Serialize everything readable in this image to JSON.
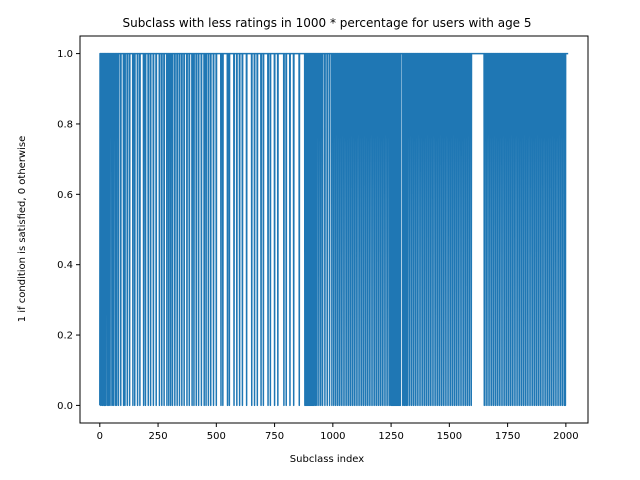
{
  "chart_data": {
    "type": "line",
    "title": "Subclass with less ratings in 1000 * percentage for users with age 5",
    "xlabel": "Subclass index",
    "ylabel": "1 if condition is satisfied, 0 otherwise",
    "xlim": [
      -85,
      2095
    ],
    "ylim": [
      -0.05,
      1.05
    ],
    "xticks": [
      0,
      250,
      500,
      750,
      1000,
      1250,
      1500,
      1750,
      2000
    ],
    "yticks": [
      0.0,
      0.2,
      0.4,
      0.6,
      0.8,
      1.0
    ],
    "xtick_labels": [
      "0",
      "250",
      "500",
      "750",
      "1000",
      "1250",
      "1500",
      "1750",
      "2000"
    ],
    "ytick_labels": [
      "0.0",
      "0.2",
      "0.4",
      "0.6",
      "0.8",
      "1.0"
    ],
    "grid": false,
    "series": [
      {
        "color": "#1f77b4",
        "x_range": [
          0,
          2010
        ],
        "zero_indices": [
          0,
          4,
          10,
          14,
          20,
          22,
          25,
          32,
          38,
          44,
          52,
          58,
          66,
          72,
          80,
          90,
          102,
          108,
          118,
          128,
          142,
          150,
          162,
          172,
          188,
          196,
          208,
          218,
          230,
          242,
          256,
          266,
          276,
          288,
          296,
          304,
          312,
          322,
          332,
          342,
          352,
          362,
          374,
          384,
          396,
          404,
          414,
          424,
          436,
          448,
          456,
          466,
          476,
          488,
          500,
          520,
          528,
          548,
          556,
          576,
          588,
          600,
          612,
          630,
          652,
          664,
          676,
          692,
          702,
          722,
          732,
          750,
          764,
          790,
          800,
          816,
          832,
          856,
          880,
          884,
          888,
          892,
          896,
          900,
          904,
          908,
          912,
          916,
          920,
          926,
          932,
          940,
          948,
          956,
          966,
          976,
          986,
          996,
          1004,
          1012,
          1020,
          1028,
          1036,
          1044,
          1052,
          1060,
          1068,
          1076,
          1084,
          1092,
          1100,
          1108,
          1116,
          1124,
          1132,
          1140,
          1148,
          1156,
          1164,
          1172,
          1180,
          1188,
          1196,
          1204,
          1212,
          1220,
          1228,
          1236,
          1244,
          1250,
          1254,
          1258,
          1262,
          1266,
          1270,
          1274,
          1278,
          1282,
          1286,
          1290,
          1300,
          1306,
          1310,
          1316,
          1322,
          1330,
          1338,
          1346,
          1354,
          1362,
          1370,
          1378,
          1386,
          1394,
          1402,
          1410,
          1418,
          1426,
          1434,
          1442,
          1450,
          1458,
          1466,
          1474,
          1482,
          1490,
          1498,
          1506,
          1514,
          1522,
          1530,
          1538,
          1546,
          1554,
          1562,
          1570,
          1578,
          1586,
          1594,
          1650,
          1658,
          1666,
          1674,
          1682,
          1690,
          1698,
          1706,
          1714,
          1722,
          1730,
          1738,
          1746,
          1754,
          1762,
          1770,
          1778,
          1786,
          1794,
          1802,
          1810,
          1818,
          1826,
          1834,
          1842,
          1850,
          1858,
          1866,
          1874,
          1882,
          1890,
          1898,
          1906,
          1914,
          1922,
          1930,
          1938,
          1946,
          1954,
          1962,
          1970,
          1978,
          1986,
          1994,
          1998
        ]
      }
    ]
  }
}
